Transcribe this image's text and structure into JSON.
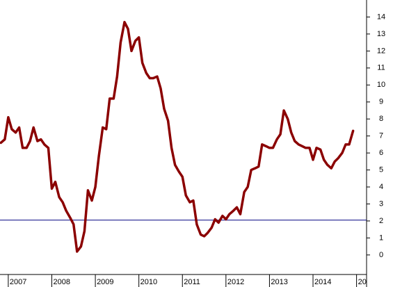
{
  "chart_data": {
    "type": "line",
    "x": [
      2006.83,
      2006.92,
      2007.0,
      2007.08,
      2007.17,
      2007.25,
      2007.33,
      2007.42,
      2007.5,
      2007.58,
      2007.67,
      2007.75,
      2007.83,
      2007.92,
      2008.0,
      2008.08,
      2008.17,
      2008.25,
      2008.33,
      2008.42,
      2008.5,
      2008.58,
      2008.67,
      2008.75,
      2008.83,
      2008.92,
      2009.0,
      2009.08,
      2009.17,
      2009.25,
      2009.33,
      2009.42,
      2009.5,
      2009.58,
      2009.67,
      2009.75,
      2009.83,
      2009.92,
      2010.0,
      2010.08,
      2010.17,
      2010.25,
      2010.33,
      2010.42,
      2010.5,
      2010.58,
      2010.67,
      2010.75,
      2010.83,
      2010.92,
      2011.0,
      2011.08,
      2011.17,
      2011.25,
      2011.33,
      2011.42,
      2011.5,
      2011.58,
      2011.67,
      2011.75,
      2011.83,
      2011.92,
      2012.0,
      2012.08,
      2012.17,
      2012.25,
      2012.33,
      2012.42,
      2012.5,
      2012.58,
      2012.67,
      2012.75,
      2012.83,
      2012.92,
      2013.0,
      2013.08,
      2013.17,
      2013.25,
      2013.33,
      2013.42,
      2013.5,
      2013.58,
      2013.67,
      2013.75,
      2013.83,
      2013.92,
      2014.0,
      2014.08,
      2014.17,
      2014.25,
      2014.33,
      2014.42,
      2014.5,
      2014.58,
      2014.67,
      2014.75,
      2014.83,
      2014.92
    ],
    "series": [
      {
        "color": "#8b0000",
        "values": [
          6.6,
          6.8,
          8.1,
          7.4,
          7.2,
          7.5,
          6.3,
          6.3,
          6.7,
          7.5,
          6.7,
          6.8,
          6.5,
          6.3,
          3.9,
          4.3,
          3.4,
          3.1,
          2.6,
          2.2,
          1.8,
          0.2,
          0.5,
          1.4,
          3.8,
          3.2,
          4.0,
          5.8,
          7.5,
          7.4,
          9.2,
          9.2,
          10.5,
          12.5,
          13.7,
          13.3,
          12.0,
          12.6,
          12.8,
          11.3,
          10.7,
          10.4,
          10.4,
          10.5,
          9.8,
          8.6,
          7.9,
          6.3,
          5.3,
          4.9,
          4.6,
          3.5,
          3.1,
          3.2,
          1.8,
          1.2,
          1.1,
          1.3,
          1.6,
          2.1,
          1.9,
          2.3,
          2.1,
          2.4,
          2.6,
          2.8,
          2.4,
          3.7,
          4.0,
          5.0,
          5.1,
          5.2,
          6.5,
          6.4,
          6.3,
          6.3,
          6.8,
          7.1,
          8.5,
          8.0,
          7.2,
          6.7,
          6.5,
          6.4,
          6.3,
          6.3,
          5.6,
          6.3,
          6.2,
          5.6,
          5.3,
          5.1,
          5.5,
          5.7,
          6.0,
          6.5,
          6.5,
          7.3
        ]
      }
    ],
    "hline": 2.05,
    "hline_color": "#000080",
    "xlim": [
      2006.81,
      2015.23
    ],
    "xticks": [
      2007,
      2008,
      2009,
      2010,
      2011,
      2012,
      2013,
      2014,
      {
        "value": 2015,
        "label": "20"
      }
    ],
    "ylim": [
      -1.15,
      15.0
    ],
    "yticks": [
      0,
      1,
      2,
      3,
      4,
      5,
      6,
      7,
      8,
      9,
      10,
      11,
      12,
      13,
      14
    ]
  }
}
